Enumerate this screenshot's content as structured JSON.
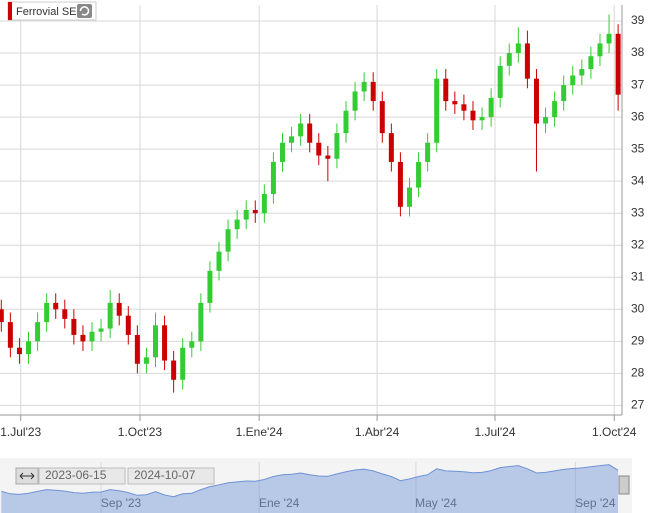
{
  "chart_data": {
    "type": "candlestick",
    "title": "Ferrovial SE",
    "x": [
      "2023-06-16",
      "2023-06-23",
      "2023-06-30",
      "2023-07-07",
      "2023-07-14",
      "2023-07-21",
      "2023-07-28",
      "2023-08-04",
      "2023-08-11",
      "2023-08-18",
      "2023-08-25",
      "2023-09-01",
      "2023-09-08",
      "2023-09-15",
      "2023-09-22",
      "2023-09-29",
      "2023-10-06",
      "2023-10-13",
      "2023-10-20",
      "2023-10-27",
      "2023-11-03",
      "2023-11-10",
      "2023-11-17",
      "2023-11-24",
      "2023-12-01",
      "2023-12-08",
      "2023-12-15",
      "2023-12-22",
      "2023-12-29",
      "2024-01-05",
      "2024-01-12",
      "2024-01-19",
      "2024-01-26",
      "2024-02-02",
      "2024-02-09",
      "2024-02-16",
      "2024-02-23",
      "2024-03-01",
      "2024-03-08",
      "2024-03-15",
      "2024-03-22",
      "2024-03-29",
      "2024-04-05",
      "2024-04-12",
      "2024-04-19",
      "2024-04-26",
      "2024-05-03",
      "2024-05-10",
      "2024-05-17",
      "2024-05-24",
      "2024-05-31",
      "2024-06-07",
      "2024-06-14",
      "2024-06-21",
      "2024-06-28",
      "2024-07-05",
      "2024-07-12",
      "2024-07-19",
      "2024-07-26",
      "2024-08-02",
      "2024-08-09",
      "2024-08-16",
      "2024-08-23",
      "2024-08-30",
      "2024-09-06",
      "2024-09-13",
      "2024-09-20",
      "2024-09-27",
      "2024-10-04"
    ],
    "open": [
      30.0,
      29.6,
      28.8,
      28.6,
      29.0,
      29.6,
      30.2,
      30.0,
      29.7,
      29.2,
      29.0,
      29.3,
      29.4,
      30.2,
      29.8,
      29.2,
      28.3,
      28.5,
      29.5,
      28.4,
      27.8,
      28.8,
      29.0,
      30.2,
      31.2,
      31.8,
      32.5,
      32.8,
      33.1,
      33.0,
      33.6,
      34.6,
      35.2,
      35.4,
      35.8,
      35.2,
      34.8,
      34.7,
      35.5,
      36.2,
      36.8,
      37.1,
      36.5,
      35.5,
      34.6,
      33.2,
      33.8,
      34.6,
      35.2,
      37.2,
      36.5,
      36.4,
      36.2,
      35.9,
      36.0,
      36.6,
      37.6,
      38.0,
      38.3,
      37.2,
      35.8,
      36.0,
      36.5,
      37.0,
      37.3,
      37.5,
      37.9,
      38.3,
      38.6
    ],
    "high": [
      30.3,
      29.9,
      29.1,
      29.3,
      29.9,
      30.5,
      30.5,
      30.3,
      30.0,
      29.5,
      29.6,
      29.7,
      30.6,
      30.5,
      30.1,
      29.5,
      28.8,
      29.9,
      29.8,
      28.7,
      29.1,
      29.3,
      30.5,
      31.5,
      32.1,
      32.8,
      33.1,
      33.4,
      33.4,
      33.9,
      34.9,
      35.5,
      35.7,
      36.1,
      36.1,
      35.5,
      35.1,
      35.8,
      36.5,
      37.1,
      37.4,
      37.4,
      36.8,
      35.8,
      34.9,
      34.1,
      34.9,
      35.5,
      37.5,
      37.5,
      36.8,
      36.7,
      36.5,
      36.3,
      36.9,
      37.9,
      38.3,
      38.8,
      38.7,
      37.5,
      36.3,
      36.8,
      37.3,
      37.6,
      37.8,
      38.2,
      38.6,
      39.2,
      38.9
    ],
    "low": [
      29.3,
      28.5,
      28.3,
      28.3,
      28.7,
      29.3,
      29.7,
      29.4,
      28.9,
      28.7,
      28.7,
      29.0,
      29.1,
      29.5,
      28.9,
      28.0,
      28.0,
      28.2,
      28.1,
      27.4,
      27.5,
      28.5,
      28.7,
      29.9,
      30.9,
      31.5,
      32.2,
      32.5,
      32.7,
      32.7,
      33.3,
      34.3,
      34.9,
      35.1,
      34.9,
      34.5,
      34.0,
      34.4,
      35.2,
      35.9,
      36.5,
      36.2,
      35.2,
      34.3,
      32.9,
      32.9,
      33.5,
      34.3,
      34.9,
      36.2,
      36.1,
      35.9,
      35.6,
      35.6,
      35.7,
      36.3,
      37.3,
      37.7,
      36.9,
      34.3,
      35.5,
      35.7,
      36.2,
      36.7,
      37.0,
      37.2,
      37.6,
      38.0,
      36.2
    ],
    "close": [
      29.6,
      28.8,
      28.6,
      29.0,
      29.6,
      30.2,
      30.0,
      29.7,
      29.2,
      29.0,
      29.3,
      29.4,
      30.2,
      29.8,
      29.2,
      28.3,
      28.5,
      29.5,
      28.4,
      27.8,
      28.8,
      29.0,
      30.2,
      31.2,
      31.8,
      32.5,
      32.8,
      33.1,
      33.0,
      33.6,
      34.6,
      35.2,
      35.4,
      35.8,
      35.2,
      34.8,
      34.7,
      35.5,
      36.2,
      36.8,
      37.1,
      36.5,
      35.5,
      34.6,
      33.2,
      33.8,
      34.6,
      35.2,
      37.2,
      36.5,
      36.4,
      36.2,
      35.9,
      36.0,
      36.6,
      37.6,
      38.0,
      38.3,
      37.2,
      35.8,
      36.0,
      36.5,
      37.0,
      37.3,
      37.5,
      37.9,
      38.3,
      38.6,
      36.7
    ],
    "up_color": "#33cc33",
    "down_color": "#cc0000",
    "xlim": [
      "2023-06-15",
      "2024-10-07"
    ],
    "xticks": [
      {
        "value": "2023-07-01",
        "label": "1.Jul'23"
      },
      {
        "value": "2023-10-01",
        "label": "1.Oct'23"
      },
      {
        "value": "2024-01-01",
        "label": "1.Ene'24"
      },
      {
        "value": "2024-04-01",
        "label": "1.Abr'24"
      },
      {
        "value": "2024-07-01",
        "label": "1.Jul'24"
      },
      {
        "value": "2024-10-01",
        "label": "1.Oct'24"
      }
    ],
    "ylim": [
      26.7,
      39.5
    ],
    "yticks": [
      27,
      28,
      29,
      30,
      31,
      32,
      33,
      34,
      35,
      36,
      37,
      38,
      39
    ],
    "grid": true,
    "navigator": {
      "range": [
        "2023-06-15",
        "2024-10-07"
      ],
      "color": "#6f93d6",
      "xticks": [
        {
          "value": "2023-09-01",
          "label": "Sep '23"
        },
        {
          "value": "2024-01-01",
          "label": "Ene '24"
        },
        {
          "value": "2024-05-01",
          "label": "May '24"
        },
        {
          "value": "2024-09-01",
          "label": "Sep '24"
        }
      ]
    }
  }
}
